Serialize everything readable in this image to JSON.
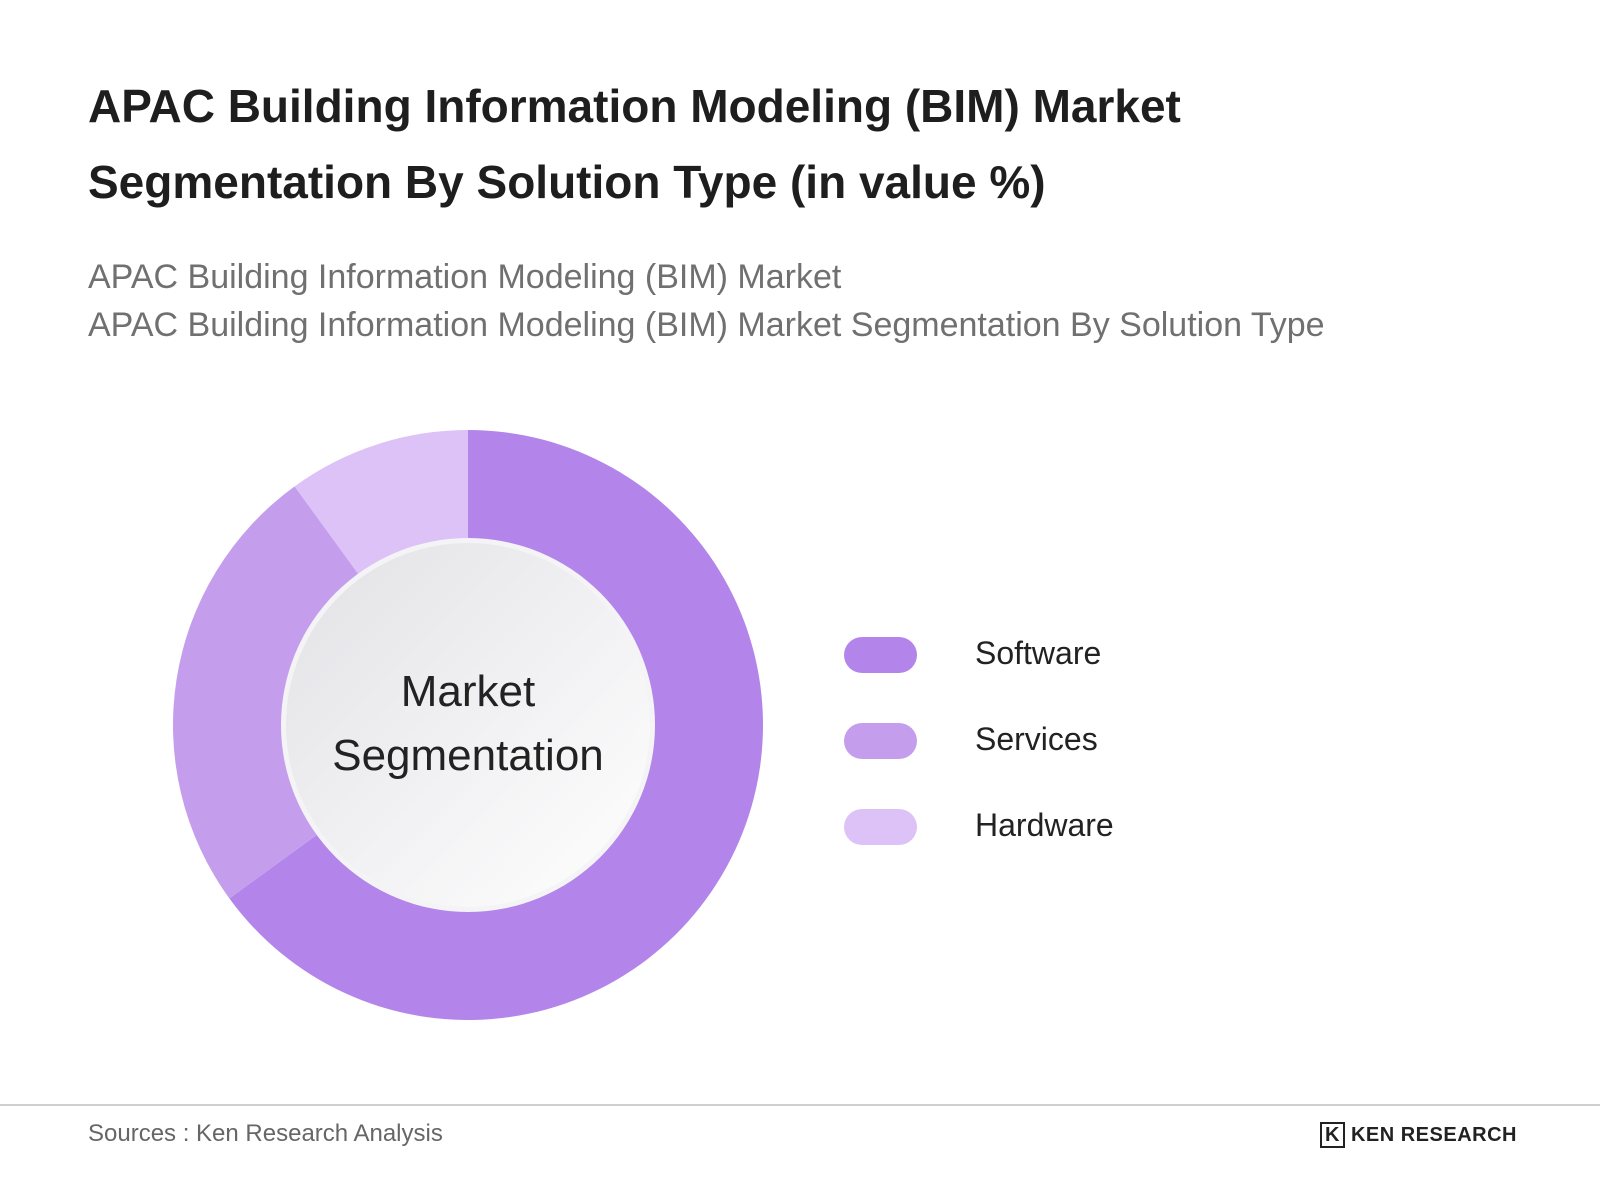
{
  "chart_data": {
    "type": "donut",
    "title": "APAC Building Information Modeling (BIM) Market Segmentation By Solution Type (in value %)",
    "subtitle": [
      "APAC Building Information Modeling (BIM) Market",
      "APAC Building Information Modeling (BIM) Market Segmentation By Solution Type"
    ],
    "center_label": "Market Segmentation",
    "categories": [
      "Software",
      "Services",
      "Hardware"
    ],
    "values": [
      65,
      25,
      10
    ],
    "colors": [
      "#b385ea",
      "#c59ded",
      "#dcc2f6"
    ],
    "source": "Sources : Ken Research Analysis",
    "brand": "KEN RESEARCH"
  }
}
